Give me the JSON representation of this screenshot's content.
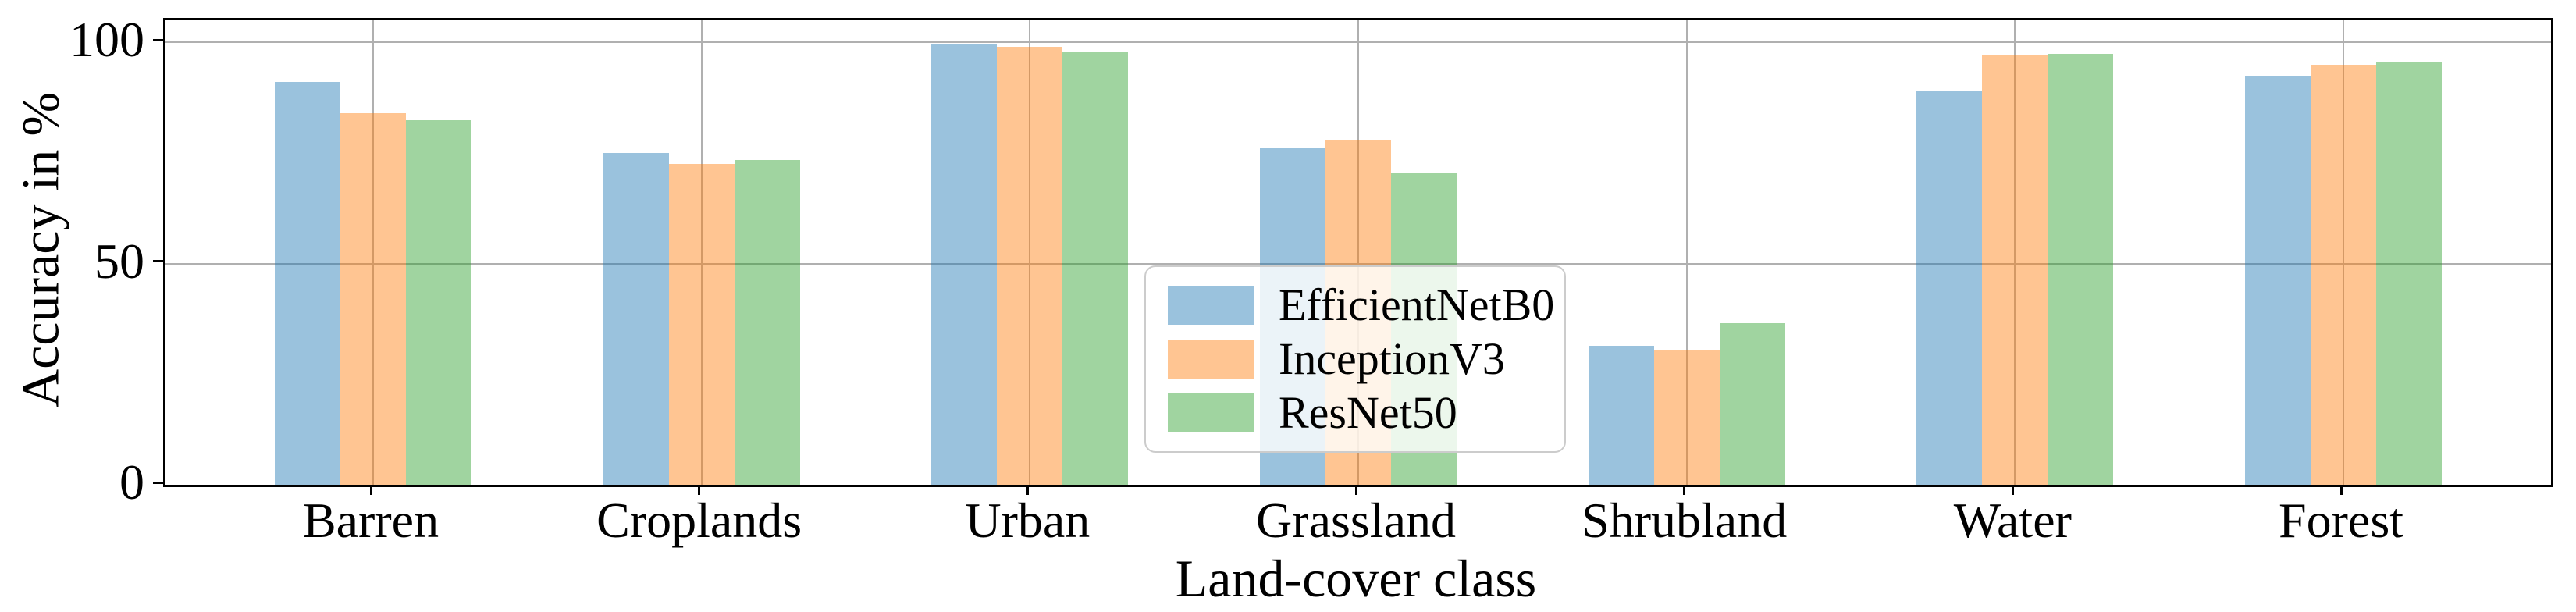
{
  "chart_data": {
    "type": "bar",
    "title": "",
    "xlabel": "Land-cover class",
    "ylabel": "Accuracy in %",
    "categories": [
      "Barren",
      "Croplands",
      "Urban",
      "Grassland",
      "Shrubland",
      "Water",
      "Forest"
    ],
    "series": [
      {
        "name": "EfficientNetB0",
        "color": "#1f77b4",
        "values": [
          91,
          75,
          99.5,
          76,
          31.5,
          89,
          92.5
        ]
      },
      {
        "name": "InceptionV3",
        "color": "#ff7f0e",
        "values": [
          84,
          72.5,
          99,
          78,
          30.5,
          97,
          95
        ]
      },
      {
        "name": "ResNet50",
        "color": "#2ca02c",
        "values": [
          82.5,
          73.5,
          98,
          70.5,
          36.5,
          97.5,
          95.5
        ]
      }
    ],
    "bar_alpha": 0.45,
    "ylim": [
      0,
      105
    ],
    "ytick_labels": [
      "0",
      "50",
      "100"
    ],
    "ytick_values": [
      0,
      50,
      100
    ],
    "grid": true,
    "legend": {
      "position": "center",
      "entries": [
        "EfficientNetB0",
        "InceptionV3",
        "ResNet50"
      ]
    },
    "colors": {
      "gridline": "#b0b0b0",
      "spine": "#000000",
      "legend_border": "#cccccc"
    }
  }
}
